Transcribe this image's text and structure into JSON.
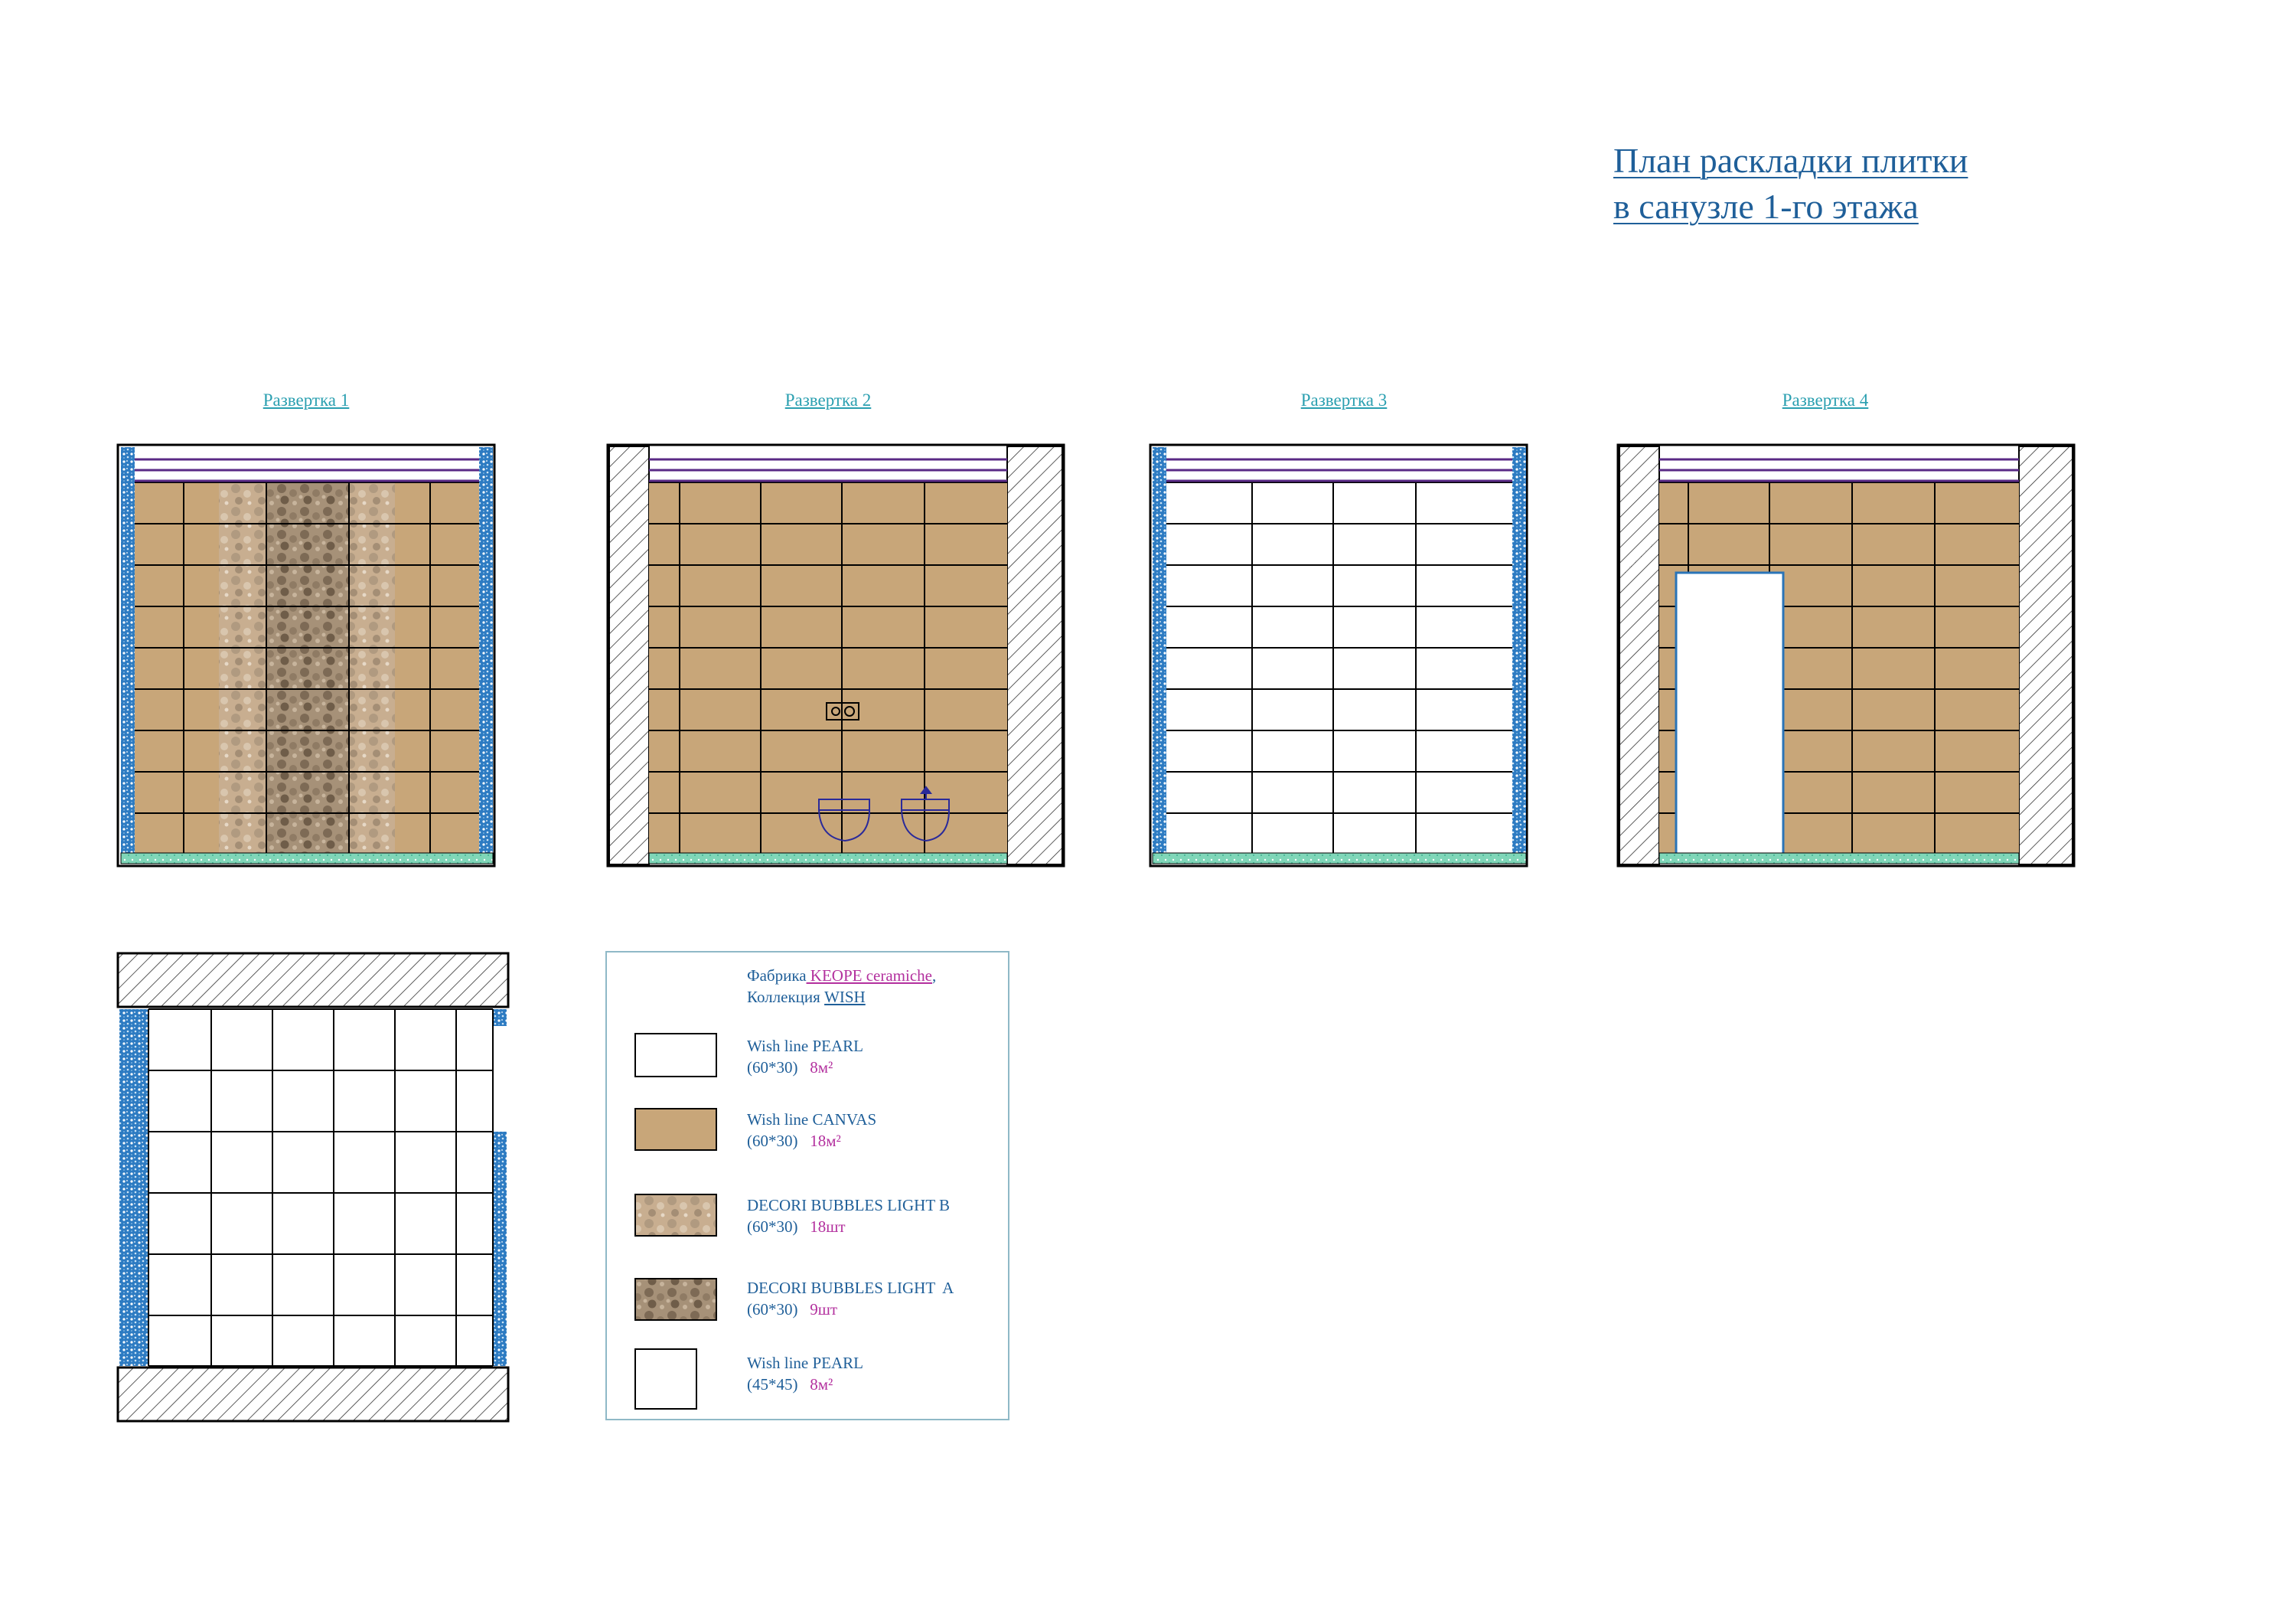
{
  "title": {
    "line1": "План раскладки плитки",
    "line2": "в санузле 1-го этажа"
  },
  "elevations": [
    {
      "label": "Развертка 1"
    },
    {
      "label": "Развертка 2"
    },
    {
      "label": "Развертка 3"
    },
    {
      "label": "Развертка 4"
    }
  ],
  "legend": {
    "factory_prefix": "Фабрика",
    "factory_name": " KEOPE ceramiche",
    "factory_suffix": ",",
    "collection_prefix": "Коллекция ",
    "collection_name": "WISH",
    "items": [
      {
        "name": "Wish line PEARL",
        "size": "(60*30)",
        "qty": "8м²",
        "swatch": "white"
      },
      {
        "name": "Wish line CANVAS",
        "size": "(60*30)",
        "qty": "18м²",
        "swatch": "canvas"
      },
      {
        "name": "DECORI BUBBLES LIGHT B",
        "size": "(60*30)",
        "qty": "18шт",
        "swatch": "bubbles-b"
      },
      {
        "name": "DECORI BUBBLES LIGHT  A",
        "size": "(60*30)",
        "qty": "9шт",
        "swatch": "bubbles-a"
      },
      {
        "name": "Wish line PEARL",
        "size": "(45*45)",
        "qty": "8м²",
        "swatch": "white-square"
      }
    ]
  },
  "colors": {
    "canvas": "#c8a679",
    "bubbles_light": "#bca58a",
    "bubbles_dark": "#8e7a63",
    "frame_purple": "#5a2a86",
    "accent_blue": "#1f5f99",
    "trim_blue": "#2a74b8",
    "floor_green": "#7fd6b8"
  }
}
